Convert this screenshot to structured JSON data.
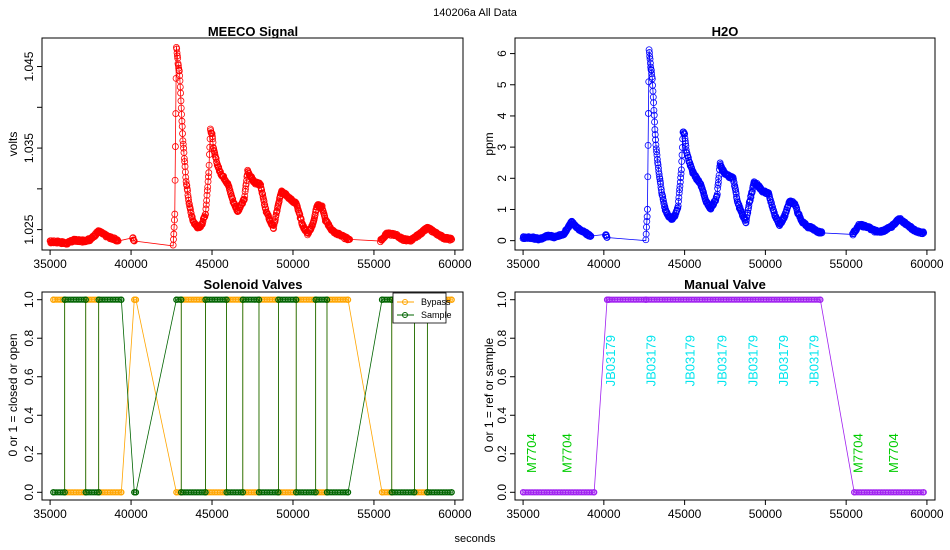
{
  "figure": {
    "title": "140206a   All Data",
    "xlabel": "seconds"
  },
  "chart_data": [
    {
      "type": "scatter",
      "title": "MEECO Signal",
      "xlabel": "",
      "ylabel": "volts",
      "xlim": [
        34500,
        60500
      ],
      "ylim": [
        1.0225,
        1.0485
      ],
      "x_ticks": [
        35000,
        40000,
        45000,
        50000,
        55000,
        60000
      ],
      "x_tick_labels": [
        "35000",
        "40000",
        "45000",
        "50000",
        "55000",
        "60000"
      ],
      "y_ticks": [
        1.025,
        1.03,
        1.035,
        1.04,
        1.045
      ],
      "y_tick_labels": [
        "1.025",
        "",
        "1.035",
        "",
        "1.045"
      ],
      "color": "#ff0000",
      "series": [
        {
          "x": [
            35000,
            35500,
            36000,
            36500,
            37000,
            37500,
            38000,
            38500,
            39000,
            39200,
            40100,
            40200,
            42600,
            42700,
            42800,
            42900,
            43000,
            43100,
            43200,
            43400,
            43600,
            43800,
            44000,
            44200,
            44400,
            44600,
            44800,
            44900,
            45000,
            45100,
            45300,
            45500,
            45800,
            46000,
            46300,
            46600,
            47000,
            47200,
            47300,
            47600,
            48000,
            48300,
            48600,
            48800,
            49000,
            49300,
            49500,
            49800,
            50200,
            50600,
            50900,
            51200,
            51500,
            51800,
            52000,
            52300,
            52600,
            52900,
            53200,
            53500,
            55400,
            55800,
            56300,
            56800,
            57300,
            57800,
            58300,
            58800,
            59300,
            59800
          ],
          "y": [
            1.0235,
            1.0235,
            1.0233,
            1.0237,
            1.0236,
            1.0238,
            1.0248,
            1.0242,
            1.0238,
            1.0236,
            1.024,
            1.0236,
            1.023,
            1.027,
            1.0475,
            1.0455,
            1.044,
            1.04,
            1.036,
            1.031,
            1.028,
            1.0262,
            1.0255,
            1.0252,
            1.0258,
            1.027,
            1.032,
            1.0372,
            1.0368,
            1.0348,
            1.0332,
            1.032,
            1.0312,
            1.0305,
            1.0285,
            1.0272,
            1.0288,
            1.0322,
            1.0318,
            1.0308,
            1.0305,
            1.0275,
            1.026,
            1.0252,
            1.0272,
            1.0298,
            1.0295,
            1.0288,
            1.0282,
            1.0255,
            1.0245,
            1.0255,
            1.028,
            1.0278,
            1.0262,
            1.0252,
            1.0246,
            1.0244,
            1.024,
            1.0238,
            1.0236,
            1.0245,
            1.0244,
            1.0238,
            1.0237,
            1.0244,
            1.0252,
            1.0246,
            1.024,
            1.0238
          ]
        }
      ]
    },
    {
      "type": "scatter",
      "title": "H2O",
      "xlabel": "",
      "ylabel": "ppm",
      "xlim": [
        34500,
        60500
      ],
      "ylim": [
        -0.3,
        6.5
      ],
      "x_ticks": [
        35000,
        40000,
        45000,
        50000,
        55000,
        60000
      ],
      "x_tick_labels": [
        "35000",
        "40000",
        "45000",
        "50000",
        "55000",
        "60000"
      ],
      "y_ticks": [
        0,
        1,
        2,
        3,
        4,
        5,
        6
      ],
      "y_tick_labels": [
        "0",
        "1",
        "2",
        "3",
        "4",
        "5",
        "6"
      ],
      "color": "#0000ff",
      "series": [
        {
          "x": [
            35000,
            35500,
            36000,
            36500,
            37000,
            37500,
            38000,
            38500,
            39000,
            39200,
            40100,
            40200,
            42600,
            42700,
            42800,
            42900,
            43000,
            43100,
            43200,
            43400,
            43600,
            43800,
            44000,
            44200,
            44400,
            44600,
            44800,
            44900,
            45000,
            45100,
            45300,
            45500,
            45800,
            46000,
            46300,
            46600,
            47000,
            47200,
            47300,
            47600,
            48000,
            48300,
            48600,
            48800,
            49000,
            49300,
            49500,
            49800,
            50200,
            50600,
            50900,
            51200,
            51500,
            51800,
            52000,
            52300,
            52600,
            52900,
            53200,
            53500,
            55400,
            55800,
            56300,
            56800,
            57300,
            57800,
            58300,
            58800,
            59300,
            59800
          ],
          "y": [
            0.1,
            0.1,
            0.05,
            0.15,
            0.12,
            0.2,
            0.6,
            0.35,
            0.2,
            0.15,
            0.2,
            0.1,
            0.0,
            1.0,
            6.1,
            5.6,
            5.2,
            4.2,
            3.2,
            2.2,
            1.5,
            1.0,
            0.8,
            0.7,
            0.8,
            1.1,
            2.3,
            3.5,
            3.4,
            2.9,
            2.5,
            2.2,
            1.95,
            1.8,
            1.3,
            1.0,
            1.4,
            2.5,
            2.3,
            2.1,
            2.0,
            1.2,
            0.8,
            0.6,
            1.2,
            1.85,
            1.8,
            1.6,
            1.5,
            0.8,
            0.5,
            0.8,
            1.25,
            1.2,
            0.9,
            0.6,
            0.45,
            0.4,
            0.3,
            0.25,
            0.2,
            0.5,
            0.45,
            0.3,
            0.3,
            0.45,
            0.7,
            0.5,
            0.3,
            0.25
          ]
        }
      ]
    },
    {
      "type": "line",
      "title": "Solenoid Valves",
      "xlabel": "",
      "ylabel": "0 or 1 = closed or open",
      "xlim": [
        34500,
        60500
      ],
      "ylim": [
        -0.04,
        1.04
      ],
      "x_ticks": [
        35000,
        40000,
        45000,
        50000,
        55000,
        60000
      ],
      "x_tick_labels": [
        "35000",
        "40000",
        "45000",
        "50000",
        "55000",
        "60000"
      ],
      "y_ticks": [
        0.0,
        0.2,
        0.4,
        0.6,
        0.8,
        1.0
      ],
      "y_tick_labels": [
        "0.0",
        "0.2",
        "0.4",
        "0.6",
        "0.8",
        "1.0"
      ],
      "legend": {
        "placement": "top-right",
        "entries": [
          "Bypass",
          "Sample"
        ]
      },
      "series": [
        {
          "name": "Bypass",
          "color": "#ffa500",
          "x": [
            35200,
            35900,
            35900,
            37200,
            37200,
            38000,
            38000,
            39400,
            40200,
            40300,
            42800,
            43100,
            43100,
            44600,
            44600,
            45900,
            45900,
            46900,
            46900,
            47900,
            47900,
            49100,
            49100,
            50200,
            50200,
            51400,
            51400,
            52100,
            52100,
            53400,
            55500,
            56100,
            56100,
            57500,
            57500,
            58300,
            58300,
            59800
          ],
          "y": [
            1,
            1,
            0,
            0,
            1,
            1,
            0,
            0,
            1,
            1,
            0,
            0,
            1,
            1,
            0,
            0,
            1,
            1,
            0,
            0,
            1,
            1,
            0,
            0,
            1,
            1,
            0,
            0,
            1,
            1,
            0,
            0,
            1,
            1,
            0,
            0,
            1,
            1
          ]
        },
        {
          "name": "Sample",
          "color": "#006400",
          "x": [
            35200,
            35900,
            35900,
            37200,
            37200,
            38000,
            38000,
            39400,
            40200,
            40300,
            42800,
            43100,
            43100,
            44600,
            44600,
            45900,
            45900,
            46900,
            46900,
            47900,
            47900,
            49100,
            49100,
            50200,
            50200,
            51400,
            51400,
            52100,
            52100,
            53400,
            55500,
            56100,
            56100,
            57500,
            57500,
            58300,
            58300,
            59800
          ],
          "y": [
            0,
            0,
            1,
            1,
            0,
            0,
            1,
            1,
            0,
            0,
            1,
            1,
            0,
            0,
            1,
            1,
            0,
            0,
            1,
            1,
            0,
            0,
            1,
            1,
            0,
            0,
            1,
            1,
            0,
            0,
            1,
            1,
            0,
            0,
            1,
            1,
            0,
            0
          ]
        }
      ]
    },
    {
      "type": "line",
      "title": "Manual Valve",
      "xlabel": "",
      "ylabel": "0 or 1 = ref or sample",
      "xlim": [
        34500,
        60500
      ],
      "ylim": [
        -0.04,
        1.04
      ],
      "x_ticks": [
        35000,
        40000,
        45000,
        50000,
        55000,
        60000
      ],
      "x_tick_labels": [
        "35000",
        "40000",
        "45000",
        "50000",
        "55000",
        "60000"
      ],
      "y_ticks": [
        0.0,
        0.2,
        0.4,
        0.6,
        0.8,
        1.0
      ],
      "y_tick_labels": [
        "0.0",
        "0.2",
        "0.4",
        "0.6",
        "0.8",
        "1.0"
      ],
      "color": "#a020f0",
      "series": [
        {
          "x": [
            35000,
            39400,
            40200,
            40300,
            42600,
            53400,
            55500,
            59800
          ],
          "y": [
            0,
            0,
            1,
            1,
            1,
            1,
            0,
            0
          ]
        }
      ],
      "annotations": [
        {
          "text": "M7704",
          "x": 35800,
          "y": 0.1,
          "color": "#00cc00"
        },
        {
          "text": "M7704",
          "x": 38000,
          "y": 0.1,
          "color": "#00cc00"
        },
        {
          "text": "JB03179",
          "x": 40700,
          "y": 0.55,
          "color": "#00e5ee"
        },
        {
          "text": "JB03179",
          "x": 43200,
          "y": 0.55,
          "color": "#00e5ee"
        },
        {
          "text": "JB03179",
          "x": 45600,
          "y": 0.55,
          "color": "#00e5ee"
        },
        {
          "text": "JB03179",
          "x": 47600,
          "y": 0.55,
          "color": "#00e5ee"
        },
        {
          "text": "JB03179",
          "x": 49500,
          "y": 0.55,
          "color": "#00e5ee"
        },
        {
          "text": "JB03179",
          "x": 51400,
          "y": 0.55,
          "color": "#00e5ee"
        },
        {
          "text": "JB03179",
          "x": 53300,
          "y": 0.55,
          "color": "#00e5ee"
        },
        {
          "text": "M7704",
          "x": 56000,
          "y": 0.1,
          "color": "#00cc00"
        },
        {
          "text": "M7704",
          "x": 58200,
          "y": 0.1,
          "color": "#00cc00"
        }
      ]
    }
  ]
}
